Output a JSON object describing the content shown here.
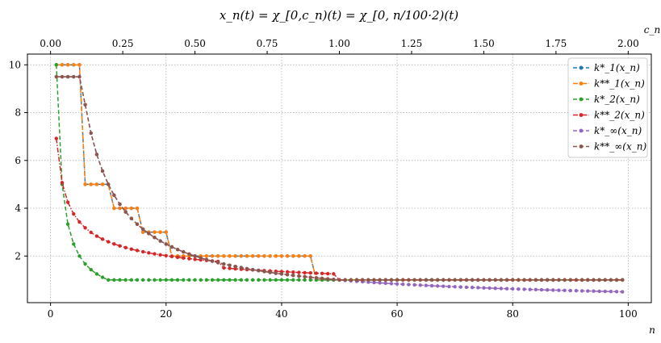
{
  "chart_data": {
    "type": "line",
    "title": "x_n(t) = χ_[0,c_n)(t) = χ_[0, n/100·2)(t)",
    "xlabel": "n",
    "x2label": "c_n",
    "ylabel": "",
    "xlim": [
      -4,
      104
    ],
    "ylim": [
      0.05,
      10.45
    ],
    "x2lim": [
      -0.08,
      2.08
    ],
    "xticks": [
      0,
      20,
      40,
      60,
      80,
      100
    ],
    "yticks": [
      2,
      4,
      6,
      8,
      10
    ],
    "x2ticks": [
      0.0,
      0.25,
      0.5,
      0.75,
      1.0,
      1.25,
      1.5,
      1.75,
      2.0
    ],
    "xtick_labels": [
      "0",
      "20",
      "40",
      "60",
      "80",
      "100"
    ],
    "ytick_labels": [
      "2",
      "4",
      "6",
      "8",
      "10"
    ],
    "x2tick_labels": [
      "0.00",
      "0.25",
      "0.50",
      "0.75",
      "1.00",
      "1.25",
      "1.50",
      "1.75",
      "2.00"
    ],
    "grid": true,
    "legend_position": "top-right",
    "n_range": [
      1,
      99
    ],
    "series": [
      {
        "name": "k*_1(x_n)",
        "color": "#1f77b4",
        "style": "dashed",
        "marker": "pentagon",
        "rule": "ceil_half_int",
        "tail": "one"
      },
      {
        "name": "k**_1(x_n)",
        "color": "#ff7f0e",
        "style": "dashdot",
        "marker": "circle",
        "rule": "ceil_half_int",
        "tail": "one"
      },
      {
        "name": "k*_2(x_n)",
        "color": "#2ca02c",
        "style": "dashed",
        "marker": "pentagon",
        "rule": "ceil_sqrt",
        "tail": "one"
      },
      {
        "name": "k**_2(x_n)",
        "color": "#d62728",
        "style": "dashdot",
        "marker": "circle",
        "rule": "sqrt",
        "tail": "one"
      },
      {
        "name": "k*_∞(x_n)",
        "color": "#9467bd",
        "style": "dashed",
        "marker": "pentagon",
        "rule": "reciprocal",
        "tail": "continue"
      },
      {
        "name": "k**_∞(x_n)",
        "color": "#8c564b",
        "style": "dashed",
        "marker": "circle",
        "rule": "reciprocal",
        "tail": "one"
      }
    ]
  }
}
